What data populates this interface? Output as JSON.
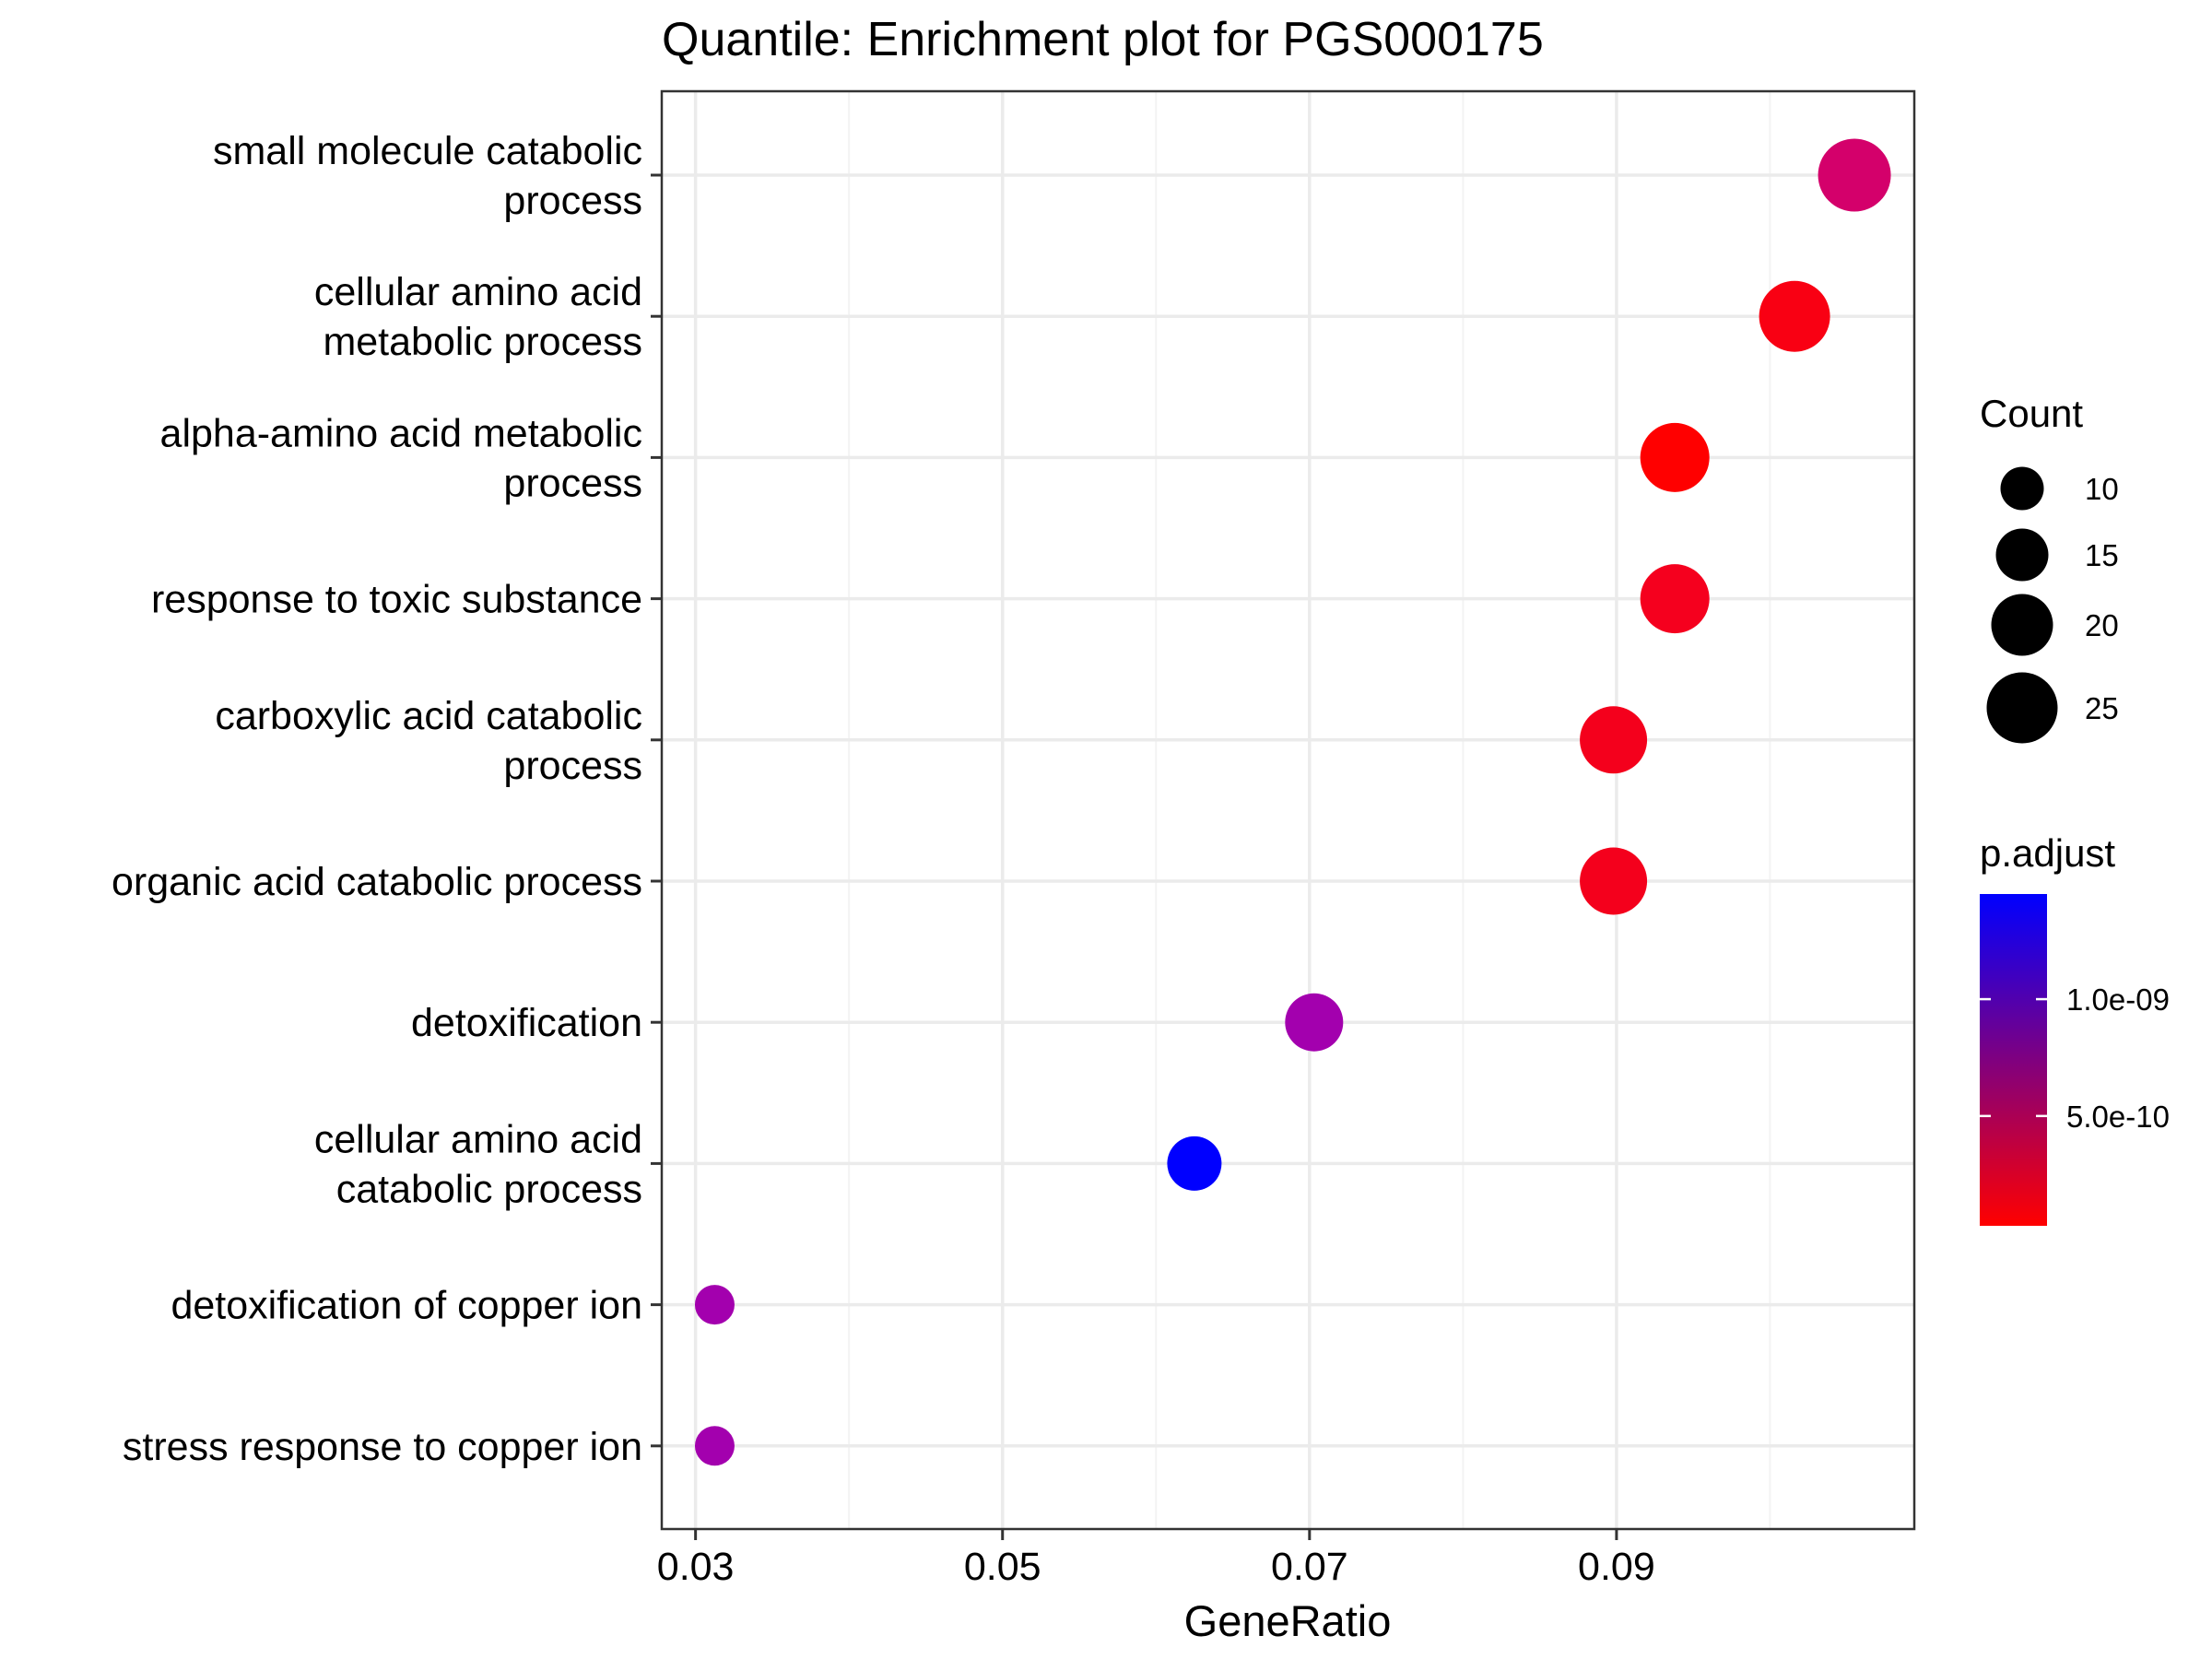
{
  "chart_data": {
    "type": "scatter",
    "title": "Quantile: Enrichment plot for PGS000175",
    "xlabel": "GeneRatio",
    "ylabel": "",
    "xlim": [
      0.0278,
      0.1094
    ],
    "x_ticks": [
      {
        "value": 0.03,
        "label": "0.03"
      },
      {
        "value": 0.05,
        "label": "0.05"
      },
      {
        "value": 0.07,
        "label": "0.07"
      },
      {
        "value": 0.09,
        "label": "0.09"
      }
    ],
    "grid": true,
    "legend_position": "right",
    "categories": [
      {
        "lines": [
          "small molecule catabolic",
          "process"
        ],
        "gene_ratio": 0.1055,
        "count": 26,
        "p_adjust": 6.5e-10,
        "color": "#D4006B"
      },
      {
        "lines": [
          "cellular amino acid",
          "metabolic process"
        ],
        "gene_ratio": 0.1016,
        "count": 25,
        "p_adjust": 1.4e-10,
        "color": "#F90013"
      },
      {
        "lines": [
          "alpha-amino acid metabolic",
          "process"
        ],
        "gene_ratio": 0.0938,
        "count": 24,
        "p_adjust": 3e-11,
        "color": "#FF0000"
      },
      {
        "lines": [
          "response to toxic substance"
        ],
        "gene_ratio": 0.0938,
        "count": 24,
        "p_adjust": 2.5e-10,
        "color": "#F5001E"
      },
      {
        "lines": [
          "carboxylic acid catabolic",
          "process"
        ],
        "gene_ratio": 0.0898,
        "count": 23,
        "p_adjust": 2.4e-10,
        "color": "#F4001C"
      },
      {
        "lines": [
          "organic acid catabolic process"
        ],
        "gene_ratio": 0.0898,
        "count": 23,
        "p_adjust": 2.4e-10,
        "color": "#F4001C"
      },
      {
        "lines": [
          "detoxification"
        ],
        "gene_ratio": 0.0703,
        "count": 18,
        "p_adjust": 1.05e-09,
        "color": "#A300AE"
      },
      {
        "lines": [
          "cellular amino acid",
          "catabolic process"
        ],
        "gene_ratio": 0.0625,
        "count": 16,
        "p_adjust": 1.45e-09,
        "color": "#0000FF"
      },
      {
        "lines": [
          "detoxification of copper ion"
        ],
        "gene_ratio": 0.03125,
        "count": 8,
        "p_adjust": 1.05e-09,
        "color": "#A300AE"
      },
      {
        "lines": [
          "stress response to copper ion"
        ],
        "gene_ratio": 0.03125,
        "count": 8,
        "p_adjust": 1.05e-09,
        "color": "#A300AE"
      }
    ],
    "legend_count": {
      "title": "Count",
      "entries": [
        {
          "value": 10,
          "label": "10"
        },
        {
          "value": 15,
          "label": "15"
        },
        {
          "value": 20,
          "label": "20"
        },
        {
          "value": 25,
          "label": "25"
        }
      ]
    },
    "legend_padjust": {
      "title": "p.adjust",
      "range": [
        3e-11,
        1.45e-09
      ],
      "color_low": "#FF0000",
      "color_high": "#0000FF",
      "ticks": [
        {
          "value": 1e-09,
          "label": "1.0e-09"
        },
        {
          "value": 5e-10,
          "label": "5.0e-10"
        }
      ]
    },
    "colors": {
      "panel_border": "#333333",
      "grid_major": "#EBEBEB",
      "grid_minor": "#F3F3F3",
      "text": "#000000"
    }
  }
}
